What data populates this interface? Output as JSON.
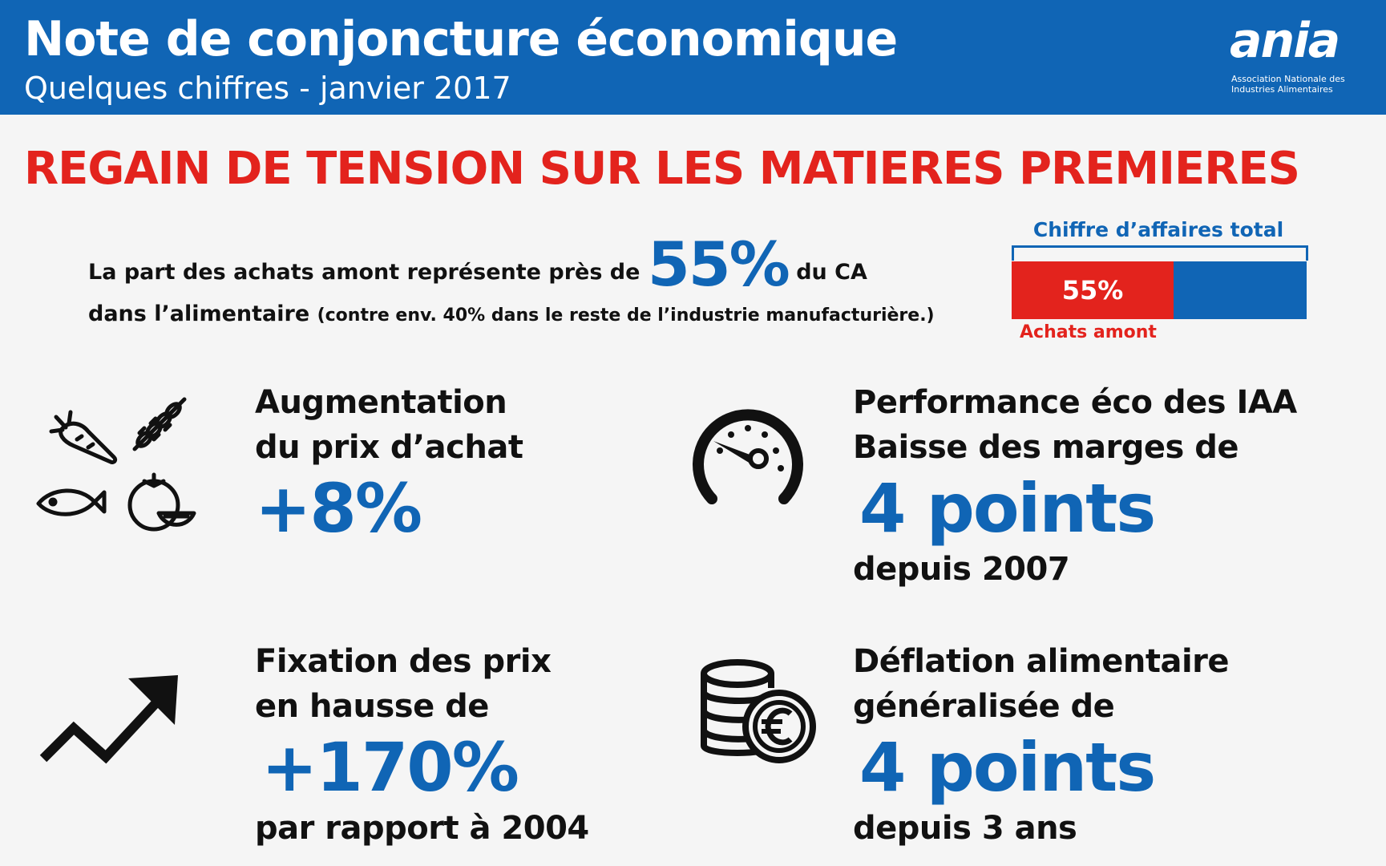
{
  "header": {
    "title": "Note de conjoncture économique",
    "subtitle": "Quelques chiffres - janvier 2017",
    "logo_word": "ania",
    "logo_sub_1": "Association Nationale des",
    "logo_sub_2": "Industries Alimentaires"
  },
  "headline": "REGAIN DE TENSION SUR LES MATIERES PREMIERES",
  "intro": {
    "line1_a": "La part des achats amont représente près de",
    "line1_value": "55%",
    "line1_b": "du CA",
    "line2_a": "dans l’alimentaire",
    "line2_b": "(contre env. 40% dans le reste de l’industrie manufacturière.)"
  },
  "ca_bar": {
    "label": "Chiffre d’affaires total",
    "share": 0.55,
    "share_label": "55%",
    "caption": "Achats amont",
    "color_share": "#e3231d",
    "color_total": "#1065b5"
  },
  "blocks": {
    "prix_achat": {
      "l1": "Augmentation",
      "l2": "du prix d’achat",
      "value": "+8%",
      "icons": [
        "carrot-icon",
        "wheat-icon",
        "fish-icon",
        "tomato-icon"
      ]
    },
    "performance": {
      "l1": "Performance éco des IAA",
      "l2": "Baisse des marges de",
      "value": "4 points",
      "l3": "depuis 2007",
      "icon": "gauge-icon"
    },
    "fixation": {
      "l1": "Fixation des prix",
      "l2": "en hausse de",
      "value": "+170%",
      "l3": "par rapport à 2004",
      "icon": "trend-up-icon"
    },
    "deflation": {
      "l1": "Déflation alimentaire",
      "l2": "généralisée de",
      "value": "4 points",
      "l3": "depuis 3 ans",
      "icon": "euro-coins-icon"
    }
  },
  "colors": {
    "blue": "#1065b5",
    "red": "#e3231d",
    "background": "#f5f5f5"
  }
}
